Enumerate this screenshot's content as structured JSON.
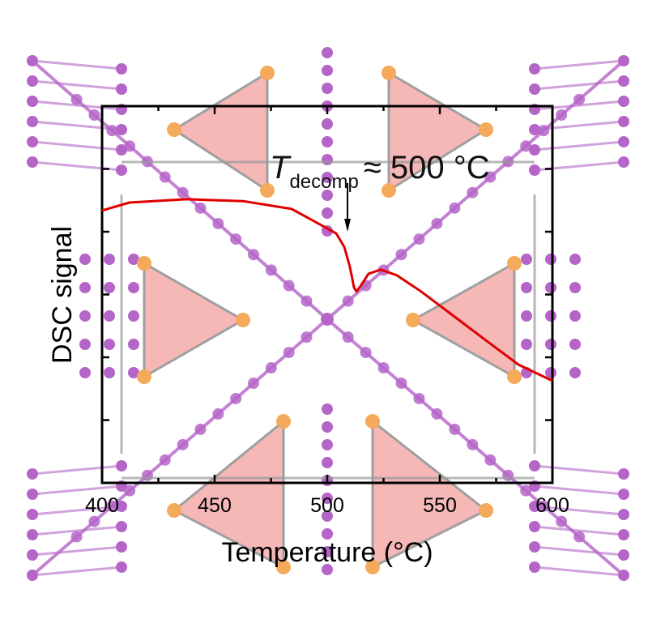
{
  "chart_data": {
    "type": "line",
    "title": "",
    "xlabel": "Temperature (°C)",
    "ylabel": "DSC signal",
    "xlim": [
      400,
      600
    ],
    "ylim": [
      0,
      1
    ],
    "x_ticks": [
      400,
      450,
      500,
      550,
      600
    ],
    "x_tick_labels": [
      "400",
      "450",
      "500",
      "550",
      "600"
    ],
    "y_tick_labels": [],
    "grid": false,
    "series": [
      {
        "color": "#e00000",
        "x": [
          400,
          412.2,
          437.4,
          462.6,
          484.2,
          498.6,
          504,
          507.6,
          510.1,
          511.9,
          513,
          515.1,
          518.3,
          523.7,
          530.9,
          541.7,
          556.1,
          570.5,
          584.9,
          600
        ],
        "y": [
          0.723,
          0.744,
          0.753,
          0.748,
          0.727,
          0.68,
          0.662,
          0.626,
          0.572,
          0.518,
          0.508,
          0.525,
          0.555,
          0.566,
          0.551,
          0.508,
          0.443,
          0.378,
          0.314,
          0.271
        ]
      }
    ],
    "annotation": {
      "symbol": "T",
      "subscript": "decomp",
      "text": "≈ 500 °C",
      "arrow_x": 509
    },
    "background": "crystal structure illustration (purple atoms, orange atoms, pink polyhedra)"
  },
  "colors": {
    "curve": "#e00000",
    "atom_purple": "#b565c8",
    "atom_orange": "#f5a95a",
    "polyhedron": "#f4a6a6"
  }
}
